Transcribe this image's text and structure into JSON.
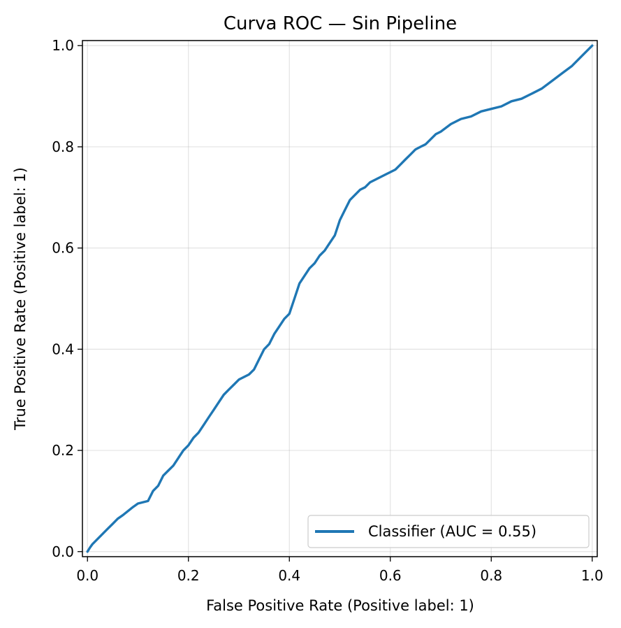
{
  "chart_data": {
    "type": "line",
    "title": "Curva ROC — Sin Pipeline",
    "xlabel": "False Positive Rate (Positive label: 1)",
    "ylabel": "True Positive Rate (Positive label: 1)",
    "xlim": [
      -0.01,
      1.01
    ],
    "ylim": [
      -0.01,
      1.01
    ],
    "x_ticks": [
      0.0,
      0.2,
      0.4,
      0.6,
      0.8,
      1.0
    ],
    "y_ticks": [
      0.0,
      0.2,
      0.4,
      0.6,
      0.8,
      1.0
    ],
    "x_tick_labels": [
      "0.0",
      "0.2",
      "0.4",
      "0.6",
      "0.8",
      "1.0"
    ],
    "y_tick_labels": [
      "0.0",
      "0.2",
      "0.4",
      "0.6",
      "0.8",
      "1.0"
    ],
    "grid": true,
    "legend_position": "lower-right",
    "series": [
      {
        "name": "Classifier (AUC = 0.55)",
        "color": "#1f77b4",
        "x": [
          0.0,
          0.005,
          0.01,
          0.02,
          0.03,
          0.04,
          0.05,
          0.06,
          0.07,
          0.08,
          0.09,
          0.1,
          0.12,
          0.13,
          0.14,
          0.15,
          0.16,
          0.17,
          0.18,
          0.19,
          0.2,
          0.21,
          0.22,
          0.23,
          0.24,
          0.25,
          0.26,
          0.27,
          0.28,
          0.29,
          0.3,
          0.31,
          0.32,
          0.33,
          0.34,
          0.35,
          0.36,
          0.37,
          0.38,
          0.39,
          0.4,
          0.41,
          0.42,
          0.43,
          0.44,
          0.45,
          0.46,
          0.47,
          0.48,
          0.49,
          0.5,
          0.51,
          0.52,
          0.53,
          0.54,
          0.55,
          0.56,
          0.57,
          0.58,
          0.59,
          0.6,
          0.61,
          0.62,
          0.63,
          0.64,
          0.65,
          0.66,
          0.67,
          0.68,
          0.69,
          0.7,
          0.72,
          0.74,
          0.76,
          0.78,
          0.8,
          0.82,
          0.84,
          0.86,
          0.88,
          0.9,
          0.92,
          0.94,
          0.96,
          0.98,
          1.0
        ],
        "y": [
          0.0,
          0.008,
          0.015,
          0.025,
          0.035,
          0.045,
          0.055,
          0.065,
          0.072,
          0.08,
          0.088,
          0.095,
          0.1,
          0.12,
          0.13,
          0.15,
          0.16,
          0.17,
          0.185,
          0.2,
          0.21,
          0.225,
          0.235,
          0.25,
          0.265,
          0.28,
          0.295,
          0.31,
          0.32,
          0.33,
          0.34,
          0.345,
          0.35,
          0.36,
          0.38,
          0.4,
          0.41,
          0.43,
          0.445,
          0.46,
          0.47,
          0.5,
          0.53,
          0.545,
          0.56,
          0.57,
          0.585,
          0.595,
          0.61,
          0.625,
          0.655,
          0.675,
          0.695,
          0.705,
          0.715,
          0.72,
          0.73,
          0.735,
          0.74,
          0.745,
          0.75,
          0.755,
          0.765,
          0.775,
          0.785,
          0.795,
          0.8,
          0.805,
          0.815,
          0.825,
          0.83,
          0.845,
          0.855,
          0.86,
          0.87,
          0.875,
          0.88,
          0.89,
          0.895,
          0.905,
          0.915,
          0.93,
          0.945,
          0.96,
          0.98,
          1.0
        ]
      }
    ]
  }
}
